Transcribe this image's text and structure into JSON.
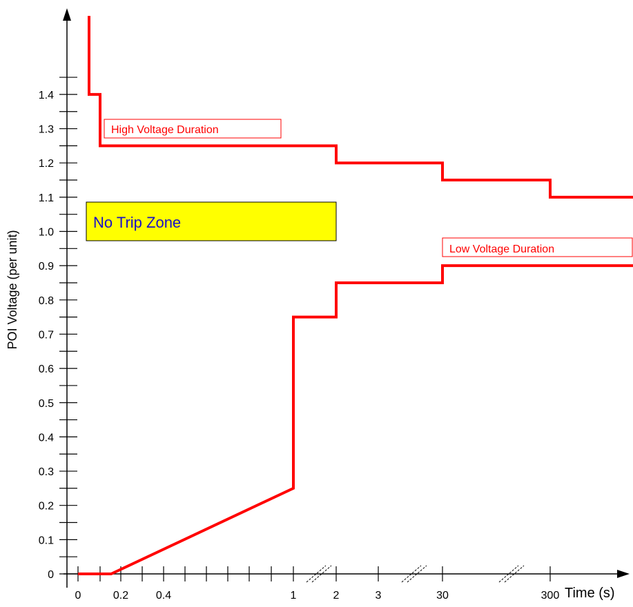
{
  "chart_data": {
    "type": "line",
    "title": "",
    "xlabel": "Time (s)",
    "ylabel": "POI Voltage (per unit)",
    "x_tick_labels": [
      "0",
      "0.2",
      "0.4",
      "1",
      "2",
      "3",
      "30",
      "300"
    ],
    "y_tick_labels": [
      "0",
      "0.1",
      "0.2",
      "0.3",
      "0.4",
      "0.5",
      "0.6",
      "0.7",
      "0.8",
      "0.9",
      "1.0",
      "1.1",
      "1.2",
      "1.3",
      "1.4"
    ],
    "ylim": [
      0,
      1.5
    ],
    "grid": false,
    "x_axis_note": "Axis is broken between 1 and 2, between 3 and 30, and between 30 and 300 (non-linear time scale).",
    "series": [
      {
        "name": "High Voltage Duration",
        "points": [
          {
            "x": "0.05",
            "y": 1.5
          },
          {
            "x": "0.05",
            "y": 1.4
          },
          {
            "x": "0.1",
            "y": 1.4
          },
          {
            "x": "0.1",
            "y": 1.25
          },
          {
            "x": "2",
            "y": 1.25
          },
          {
            "x": "2",
            "y": 1.2
          },
          {
            "x": "30",
            "y": 1.2
          },
          {
            "x": "30",
            "y": 1.15
          },
          {
            "x": "300",
            "y": 1.15
          },
          {
            "x": "300",
            "y": 1.1
          },
          {
            "x": ">300",
            "y": 1.1
          }
        ]
      },
      {
        "name": "Low Voltage Duration",
        "points": [
          {
            "x": "0",
            "y": 0
          },
          {
            "x": "0.15",
            "y": 0
          },
          {
            "x": "1",
            "y": 0.25
          },
          {
            "x": "1",
            "y": 0.75
          },
          {
            "x": "2",
            "y": 0.75
          },
          {
            "x": "2",
            "y": 0.85
          },
          {
            "x": "30",
            "y": 0.85
          },
          {
            "x": "30",
            "y": 0.9
          },
          {
            "x": ">300",
            "y": 0.9
          }
        ]
      }
    ],
    "annotations": [
      {
        "text": "High Voltage Duration",
        "color": "#ff0000"
      },
      {
        "text": "Low Voltage Duration",
        "color": "#ff0000"
      },
      {
        "text": "No Trip Zone",
        "color": "#1a10c8",
        "fill": "#ffff00"
      }
    ],
    "colors": {
      "curve": "#ff0000",
      "zone_fill": "#ffff00",
      "zone_text": "#1a10c8",
      "axis": "#000000"
    }
  }
}
